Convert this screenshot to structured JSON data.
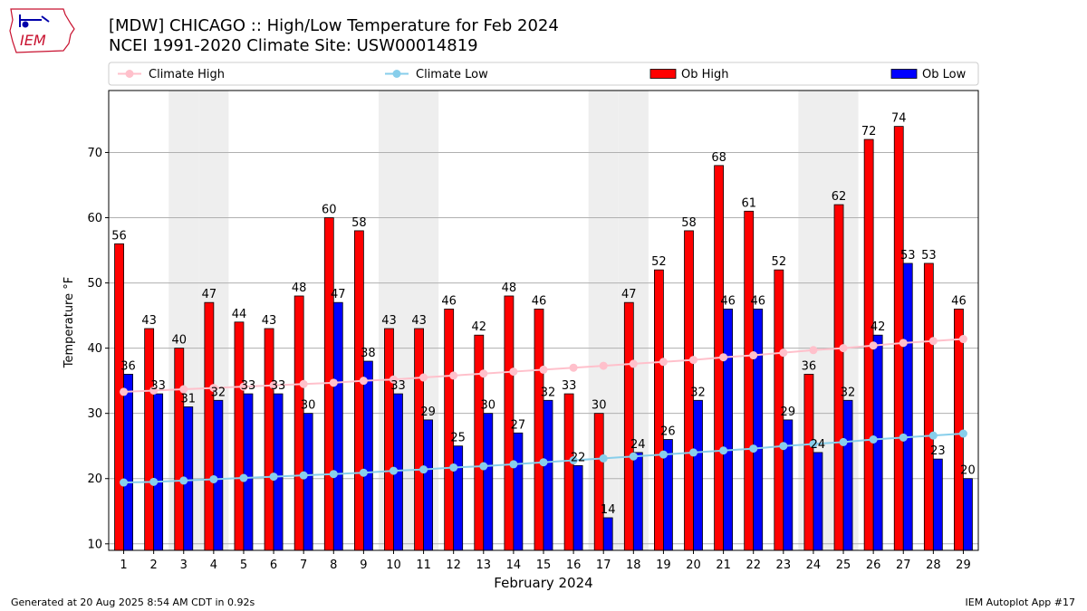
{
  "header": {
    "title_line1": "[MDW] CHICAGO :: High/Low Temperature for Feb 2024",
    "title_line2": "NCEI 1991-2020 Climate Site: USW00014819"
  },
  "logo": {
    "text": "IEM"
  },
  "footer": {
    "left": "Generated at 20 Aug 2025 8:54 AM CDT in 0.92s",
    "right": "IEM Autoplot App #17"
  },
  "colors": {
    "ob_high": "#ff0000",
    "ob_low": "#0000ff",
    "climate_high": "#ffc0cb",
    "climate_low": "#87ceeb",
    "weekend_shade": "#eeeeee",
    "grid": "#b0b0b0"
  },
  "chart_data": {
    "type": "bar",
    "xlabel": "February 2024",
    "ylabel": "Temperature °F",
    "ylim": [
      9,
      79.5
    ],
    "yticks": [
      10,
      20,
      30,
      40,
      50,
      60,
      70
    ],
    "grid": "horizontal",
    "legend_position": "top",
    "categories": [
      "1",
      "2",
      "3",
      "4",
      "5",
      "6",
      "7",
      "8",
      "9",
      "10",
      "11",
      "12",
      "13",
      "14",
      "15",
      "16",
      "17",
      "18",
      "19",
      "20",
      "21",
      "22",
      "23",
      "24",
      "25",
      "26",
      "27",
      "28",
      "29"
    ],
    "shaded_days": [
      3,
      4,
      10,
      11,
      17,
      18,
      24,
      25
    ],
    "series": [
      {
        "name": "Ob High",
        "kind": "bar",
        "values": [
          56,
          43,
          40,
          47,
          44,
          43,
          48,
          60,
          58,
          43,
          43,
          46,
          42,
          48,
          46,
          33,
          30,
          47,
          52,
          58,
          68,
          61,
          52,
          36,
          62,
          72,
          74,
          53,
          46
        ]
      },
      {
        "name": "Ob Low",
        "kind": "bar",
        "values": [
          36,
          33,
          31,
          32,
          33,
          33,
          30,
          47,
          38,
          33,
          29,
          25,
          30,
          27,
          32,
          22,
          14,
          24,
          26,
          32,
          46,
          46,
          29,
          24,
          32,
          42,
          53,
          23,
          20
        ]
      },
      {
        "name": "Climate High",
        "kind": "line",
        "values": [
          33.3,
          33.5,
          33.7,
          33.9,
          34.1,
          34.3,
          34.5,
          34.7,
          35.0,
          35.2,
          35.5,
          35.8,
          36.1,
          36.4,
          36.7,
          37.0,
          37.3,
          37.6,
          37.9,
          38.2,
          38.6,
          38.9,
          39.3,
          39.7,
          40.0,
          40.4,
          40.8,
          41.1,
          41.4
        ]
      },
      {
        "name": "Climate Low",
        "kind": "line",
        "values": [
          19.4,
          19.5,
          19.7,
          19.9,
          20.1,
          20.3,
          20.5,
          20.7,
          20.9,
          21.2,
          21.4,
          21.7,
          21.9,
          22.2,
          22.5,
          22.8,
          23.1,
          23.4,
          23.7,
          24.0,
          24.3,
          24.6,
          25.0,
          25.3,
          25.6,
          26.0,
          26.3,
          26.6,
          26.9
        ]
      }
    ]
  }
}
